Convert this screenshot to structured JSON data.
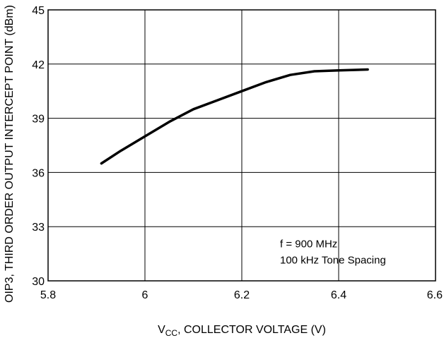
{
  "chart_data": {
    "type": "line",
    "xlabel_main": "V",
    "xlabel_sub": "CC",
    "xlabel_rest": ", COLLECTOR VOLTAGE (V)",
    "ylabel": "OIP3, THIRD ORDER OUTPUT INTERCEPT POINT (dBm)",
    "xlim": [
      5.8,
      6.6
    ],
    "ylim": [
      30,
      45
    ],
    "x_ticks": [
      5.8,
      6.0,
      6.2,
      6.4,
      6.6
    ],
    "x_tick_labels": [
      "5.8",
      "6",
      "6.2",
      "6.4",
      "6.6"
    ],
    "y_ticks": [
      30,
      33,
      36,
      39,
      42,
      45
    ],
    "y_tick_labels": [
      "30",
      "33",
      "36",
      "39",
      "42",
      "45"
    ],
    "grid": true,
    "annotations": [
      "f = 900 MHz",
      "100 kHz Tone Spacing"
    ],
    "series": [
      {
        "x": [
          5.91,
          5.95,
          6.0,
          6.05,
          6.1,
          6.15,
          6.2,
          6.25,
          6.3,
          6.35,
          6.4,
          6.46
        ],
        "y": [
          36.5,
          37.2,
          38.0,
          38.8,
          39.5,
          40.0,
          40.5,
          41.0,
          41.4,
          41.6,
          41.65,
          41.7
        ]
      }
    ]
  }
}
